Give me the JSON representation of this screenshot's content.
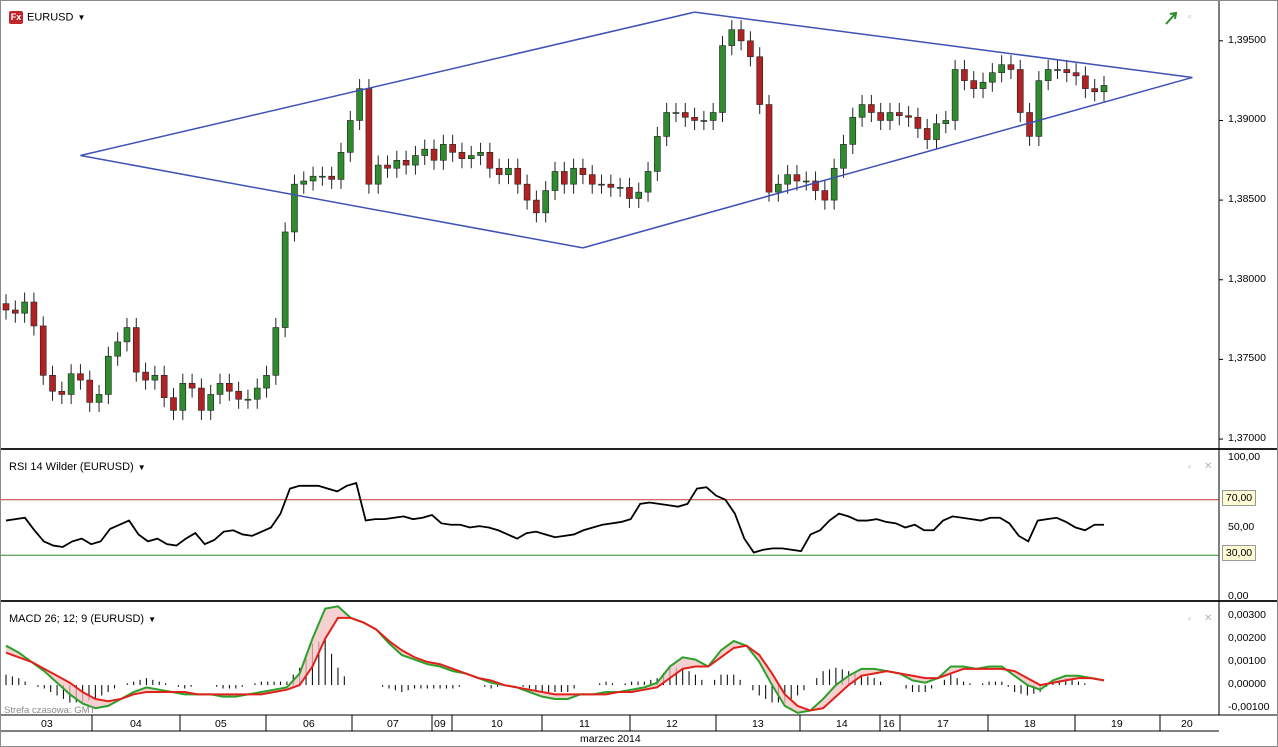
{
  "price_pane": {
    "symbol": "EURUSD",
    "fx_badge": "Fx",
    "y_ticks": [
      "1,39500",
      "1,39000",
      "1,38500",
      "1,38000",
      "1,37500",
      "1,37000"
    ]
  },
  "rsi_pane": {
    "label": "RSI 14 Wilder (EURUSD)",
    "y_ticks": [
      "100,00",
      "50,00",
      "0,00"
    ],
    "overbought": "70,00",
    "oversold": "30,00"
  },
  "macd_pane": {
    "label": "MACD 26; 12; 9 (EURUSD)",
    "y_ticks": [
      "0,00300",
      "0,00200",
      "0,00100",
      "0,00000",
      "-0,00100"
    ]
  },
  "timezone": "Strefa czasowa: GMT",
  "month_label": "marzec 2014",
  "date_labels": [
    "03",
    "04",
    "05",
    "06",
    "07",
    "09",
    "10",
    "11",
    "12",
    "13",
    "14",
    "16",
    "17",
    "18",
    "19",
    "20"
  ],
  "colors": {
    "bull": "#2e8b2e",
    "bear": "#b22222",
    "trendline": "#3f51b5",
    "rsi_ob": "#c0392b",
    "rsi_os": "#2e8b2e",
    "macd": "#2ba02b",
    "signal": "#e0201b",
    "hist_fill": "#f3c1c1",
    "hist_fill_up": "#bfe8bf"
  },
  "icons": {
    "chart-arrow": "chart-up-arrow-icon"
  },
  "chart_data": [
    {
      "type": "candlestick",
      "title": "EURUSD",
      "series": [
        {
          "name": "EURUSD",
          "close": [
            1.3781,
            1.3779,
            1.3786,
            1.3771,
            1.374,
            1.373,
            1.3728,
            1.3741,
            1.3737,
            1.3723,
            1.3728,
            1.3752,
            1.3761,
            1.377,
            1.3742,
            1.3737,
            1.374,
            1.3726,
            1.3718,
            1.3735,
            1.3732,
            1.3718,
            1.3728,
            1.3735,
            1.373,
            1.3725,
            1.3725,
            1.3732,
            1.374,
            1.377,
            1.383,
            1.386,
            1.3862,
            1.3865,
            1.3865,
            1.3863,
            1.388,
            1.39,
            1.392,
            1.386,
            1.3872,
            1.387,
            1.3875,
            1.3872,
            1.3878,
            1.3882,
            1.3875,
            1.3885,
            1.388,
            1.3876,
            1.3878,
            1.388,
            1.387,
            1.3866,
            1.387,
            1.386,
            1.385,
            1.3842,
            1.3856,
            1.3868,
            1.386,
            1.387,
            1.3866,
            1.386,
            1.386,
            1.3858,
            1.3858,
            1.3851,
            1.3855,
            1.3868,
            1.389,
            1.3905,
            1.3905,
            1.3902,
            1.39,
            1.39,
            1.3905,
            1.3947,
            1.3957,
            1.395,
            1.394,
            1.391,
            1.3855,
            1.386,
            1.3866,
            1.3862,
            1.3862,
            1.3856,
            1.385,
            1.387,
            1.3885,
            1.3902,
            1.391,
            1.3905,
            1.39,
            1.3905,
            1.3903,
            1.3902,
            1.3895,
            1.3888,
            1.3898,
            1.39,
            1.3932,
            1.3925,
            1.392,
            1.3924,
            1.393,
            1.3935,
            1.3932,
            1.3905,
            1.389,
            1.3925,
            1.3932,
            1.3932,
            1.393,
            1.3928,
            1.392,
            1.3918,
            1.3922
          ]
        }
      ],
      "ylim": [
        1.3695,
        1.3975
      ],
      "x_labels": [
        "03",
        "04",
        "05",
        "06",
        "07",
        "09",
        "10",
        "11",
        "12",
        "13",
        "14",
        "16",
        "17",
        "18",
        "19",
        "20"
      ]
    },
    {
      "type": "line",
      "title": "RSI 14 Wilder (EURUSD)",
      "ylim": [
        0,
        100
      ],
      "levels": [
        70,
        30
      ],
      "series": [
        {
          "name": "RSI",
          "values": [
            55,
            56,
            57,
            48,
            40,
            37,
            36,
            40,
            42,
            38,
            40,
            49,
            52,
            55,
            45,
            40,
            42,
            38,
            37,
            42,
            46,
            38,
            41,
            47,
            48,
            45,
            44,
            47,
            50,
            60,
            78,
            80,
            80,
            80,
            78,
            76,
            80,
            82,
            55,
            56,
            56,
            57,
            58,
            56,
            57,
            59,
            53,
            52,
            52,
            50,
            51,
            50,
            48,
            45,
            42,
            46,
            47,
            45,
            43,
            44,
            45,
            48,
            50,
            52,
            53,
            54,
            56,
            67,
            68,
            67,
            66,
            65,
            67,
            78,
            79,
            73,
            70,
            60,
            42,
            32,
            34,
            35,
            35,
            34,
            33,
            45,
            48,
            55,
            60,
            58,
            55,
            55,
            56,
            54,
            53,
            50,
            52,
            48,
            48,
            55,
            58,
            57,
            56,
            55,
            57,
            57,
            53,
            44,
            40,
            55,
            56,
            57,
            54,
            50,
            48,
            52,
            52
          ]
        }
      ]
    },
    {
      "type": "line",
      "title": "MACD 26; 12; 9 (EURUSD)",
      "ylim": [
        -0.00125,
        0.0035
      ],
      "series": [
        {
          "name": "MACD",
          "values": [
            0.0017,
            0.0014,
            0.001,
            0.0006,
            0.0001,
            -0.0004,
            -0.0008,
            -0.001,
            -0.0009,
            -0.0006,
            -0.0003,
            -0.0001,
            -0.0002,
            -0.0003,
            -0.0004,
            -0.0004,
            -0.0004,
            -0.0005,
            -0.0005,
            -0.0004,
            -0.0003,
            -0.0002,
            -0.0001,
            0.0005,
            0.002,
            0.0033,
            0.0034,
            0.0029,
            0.0027,
            0.0024,
            0.0018,
            0.0013,
            0.0011,
            0.0009,
            0.0008,
            0.0006,
            0.0005,
            0.0003,
            0.0001,
            0.0,
            -0.0001,
            -0.0003,
            -0.0005,
            -0.0006,
            -0.0006,
            -0.0004,
            -0.0004,
            -0.0003,
            -0.0003,
            -0.0002,
            -0.0001,
            0.0001,
            0.0008,
            0.0012,
            0.0011,
            0.0008,
            0.0015,
            0.0019,
            0.0017,
            0.001,
            0.0,
            -0.0009,
            -0.0012,
            -0.0011,
            -0.0006,
            0.0,
            0.0004,
            0.0007,
            0.0007,
            0.0006,
            0.0005,
            0.0002,
            0.0001,
            0.0003,
            0.0008,
            0.0008,
            0.0007,
            0.0008,
            0.0008,
            0.0004,
            0.0,
            -0.0002,
            0.0002,
            0.0004,
            0.0004,
            0.0003,
            0.0002
          ]
        },
        {
          "name": "Signal",
          "values": [
            0.0014,
            0.0012,
            0.001,
            0.0007,
            0.0004,
            0.0001,
            -0.0003,
            -0.0006,
            -0.0007,
            -0.0006,
            -0.0004,
            -0.0003,
            -0.0003,
            -0.0003,
            -0.0003,
            -0.0004,
            -0.0004,
            -0.0004,
            -0.0004,
            -0.0004,
            -0.0004,
            -0.0003,
            -0.0002,
            0.0,
            0.0008,
            0.002,
            0.0029,
            0.0029,
            0.0027,
            0.0024,
            0.0019,
            0.0015,
            0.0012,
            0.001,
            0.0009,
            0.0007,
            0.0005,
            0.0003,
            0.0002,
            0.0,
            -0.0001,
            -0.0002,
            -0.0003,
            -0.0004,
            -0.0004,
            -0.0004,
            -0.0004,
            -0.0004,
            -0.0003,
            -0.0003,
            -0.0002,
            -0.0001,
            0.0003,
            0.0007,
            0.0008,
            0.0008,
            0.0012,
            0.0016,
            0.0017,
            0.0013,
            0.0005,
            -0.0004,
            -0.0009,
            -0.0011,
            -0.001,
            -0.0005,
            0.0,
            0.0004,
            0.0005,
            0.0006,
            0.0005,
            0.0004,
            0.0003,
            0.0003,
            0.0005,
            0.0007,
            0.0007,
            0.0007,
            0.0007,
            0.0006,
            0.0003,
            0.0,
            0.0001,
            0.0002,
            0.0003,
            0.0003,
            0.0002
          ]
        }
      ]
    }
  ]
}
